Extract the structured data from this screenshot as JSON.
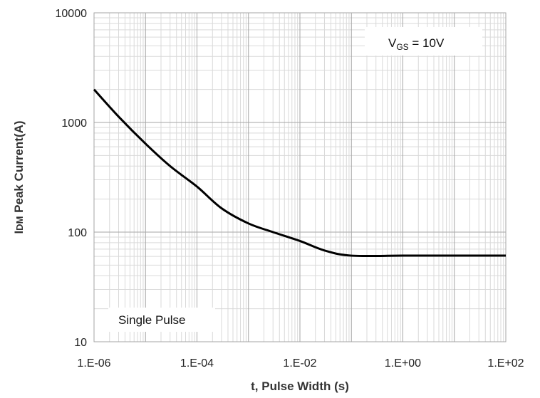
{
  "chart_data": {
    "type": "line",
    "title": "",
    "xlabel": "t, Pulse Width (s)",
    "ylabel_prefix": "I",
    "ylabel_subscript": "DM",
    "ylabel_rest": " Peak Current(A)",
    "x_scale": "log",
    "y_scale": "log",
    "xlim": [
      1e-06,
      100
    ],
    "ylim": [
      10,
      10000
    ],
    "x_tick_labels": [
      "1.E-06",
      "1.E-04",
      "1.E-02",
      "1.E+00",
      "1.E+02"
    ],
    "y_tick_labels": [
      "10",
      "100",
      "1000",
      "10000"
    ],
    "grid": true,
    "series": [
      {
        "color": "#000000",
        "x": [
          1e-06,
          3e-06,
          1e-05,
          3e-05,
          0.0001,
          0.0003,
          0.001,
          0.003,
          0.01,
          0.03,
          0.1,
          1,
          10,
          100
        ],
        "y": [
          2000,
          1130,
          640,
          400,
          260,
          165,
          120,
          100,
          83,
          68,
          61,
          61,
          61,
          61
        ]
      }
    ],
    "annotations": {
      "vgs_prefix": "V",
      "vgs_subscript": "GS",
      "vgs_rest": " = 10V",
      "pulse_label": "Single Pulse"
    }
  }
}
